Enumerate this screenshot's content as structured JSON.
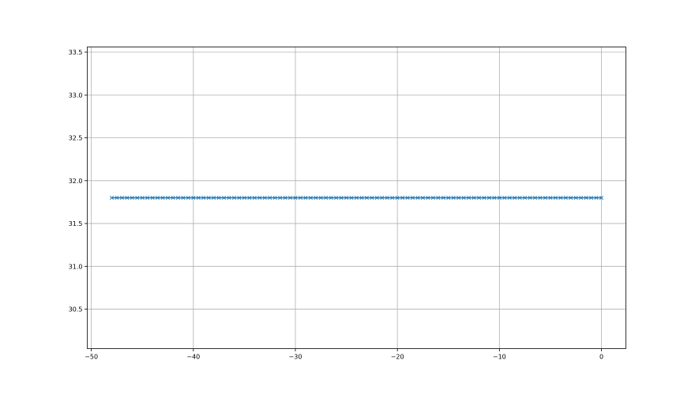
{
  "chart_data": {
    "type": "line",
    "title": "",
    "xlabel": "",
    "ylabel": "",
    "xlim": [
      -50.4,
      2.4
    ],
    "ylim": [
      30.04,
      33.56
    ],
    "xticks": [
      -50,
      -40,
      -30,
      -20,
      -10,
      0
    ],
    "xtick_labels": [
      "−50",
      "−40",
      "−30",
      "−20",
      "−10",
      "0"
    ],
    "yticks": [
      30.5,
      31.0,
      31.5,
      32.0,
      32.5,
      33.0,
      33.5
    ],
    "ytick_labels": [
      "30.5",
      "31.0",
      "31.5",
      "32.0",
      "32.5",
      "33.0",
      "33.5"
    ],
    "grid": true,
    "legend": "none",
    "series": [
      {
        "color": "#1f77b4",
        "marker": "x",
        "x": [
          -48,
          -47.5,
          -47,
          -46.5,
          -46,
          -45.5,
          -45,
          -44.5,
          -44,
          -43.5,
          -43,
          -42.5,
          -42,
          -41.5,
          -41,
          -40.5,
          -40,
          -39.5,
          -39,
          -38.5,
          -38,
          -37.5,
          -37,
          -36.5,
          -36,
          -35.5,
          -35,
          -34.5,
          -34,
          -33.5,
          -33,
          -32.5,
          -32,
          -31.5,
          -31,
          -30.5,
          -30,
          -29.5,
          -29,
          -28.5,
          -28,
          -27.5,
          -27,
          -26.5,
          -26,
          -25.5,
          -25,
          -24.5,
          -24,
          -23.5,
          -23,
          -22.5,
          -22,
          -21.5,
          -21,
          -20.5,
          -20,
          -19.5,
          -19,
          -18.5,
          -18,
          -17.5,
          -17,
          -16.5,
          -16,
          -15.5,
          -15,
          -14.5,
          -14,
          -13.5,
          -13,
          -12.5,
          -12,
          -11.5,
          -11,
          -10.5,
          -10,
          -9.5,
          -9,
          -8.5,
          -8,
          -7.5,
          -7,
          -6.5,
          -6,
          -5.5,
          -5,
          -4.5,
          -4,
          -3.5,
          -3,
          -2.5,
          -2,
          -1.5,
          -1,
          -0.5,
          0
        ],
        "y_constant": 31.8
      }
    ]
  }
}
